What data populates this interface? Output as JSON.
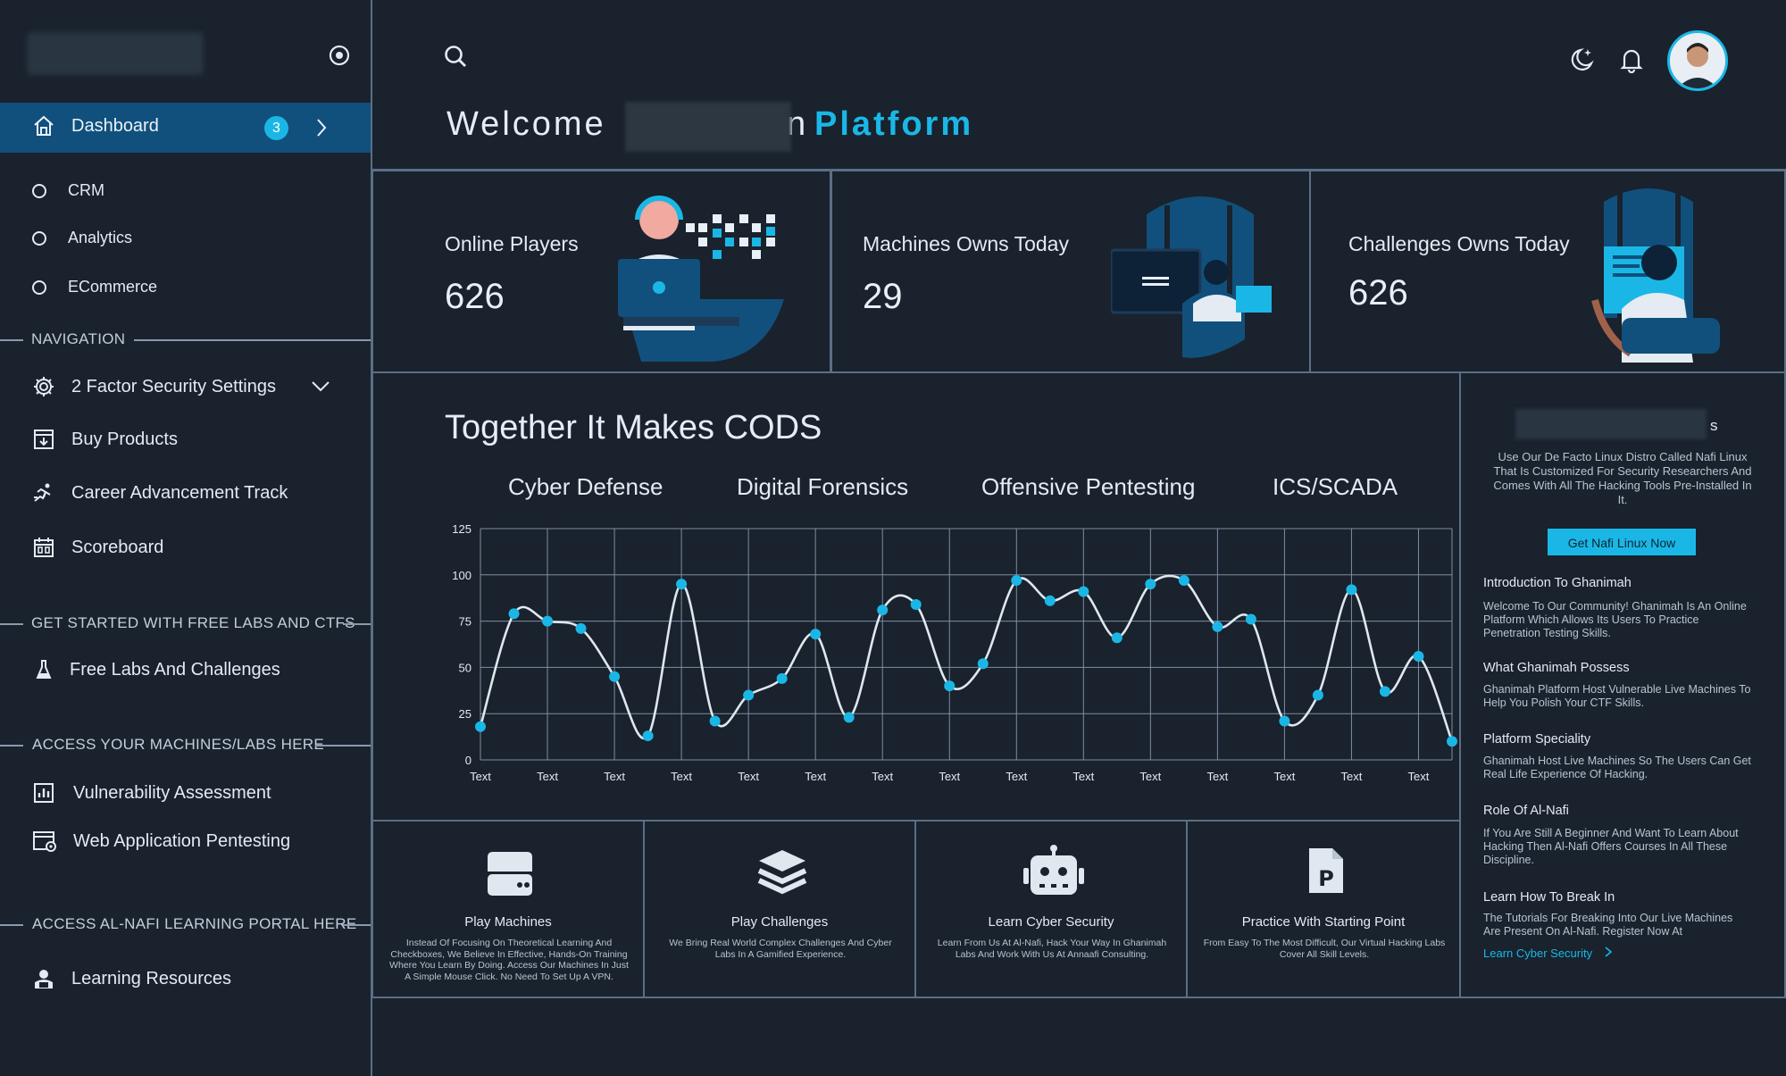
{
  "sidebar": {
    "nav_active": {
      "label": "Dashboard",
      "badge": "3"
    },
    "subitems": [
      {
        "label": "CRM"
      },
      {
        "label": "Analytics"
      },
      {
        "label": "ECommerce"
      }
    ],
    "sections": {
      "navigation": "NAVIGATION",
      "free_labs": "GET STARTED WITH FREE LABS AND CTFS",
      "machines": "ACCESS YOUR MACHINES/LABS HERE",
      "learning": "ACCESS AL-NAFI LEARNING PORTAL HERE"
    },
    "items": {
      "two_factor": "2 Factor Security Settings",
      "buy_products": "Buy Products",
      "career_track": "Career Advancement Track",
      "scoreboard": "Scoreboard",
      "free_labs": "Free Labs And Challenges",
      "vuln_assessment": "Vulnerability Assessment",
      "web_pentesting": "Web Application Pentesting",
      "learning_resources": "Learning Resources"
    }
  },
  "header": {
    "welcome_prefix": "Welcome",
    "welcome_suffix": "n",
    "platform": "Platform"
  },
  "stats": [
    {
      "title": "Online Players",
      "value": "626"
    },
    {
      "title": "Machines Owns Today",
      "value": "29"
    },
    {
      "title": "Challenges Owns Today",
      "value": "626"
    }
  ],
  "chart_section": {
    "title": "Together It Makes CODS",
    "tabs": [
      "Cyber Defense",
      "Digital Forensics",
      "Offensive Pentesting",
      "ICS/SCADA"
    ]
  },
  "chart_data": {
    "type": "line",
    "title": "",
    "xlabel": "",
    "ylabel": "",
    "ylim": [
      0,
      125
    ],
    "yticks": [
      0,
      25,
      50,
      75,
      100,
      125
    ],
    "xtick_labels": [
      "Text",
      "Text",
      "Text",
      "Text",
      "Text",
      "Text",
      "Text",
      "Text",
      "Text",
      "Text",
      "Text",
      "Text",
      "Text",
      "Text",
      "Text"
    ],
    "grid": true,
    "series": [
      {
        "color": "#1ab7e6",
        "x": [
          0,
          0.5,
          1,
          1.5,
          2,
          2.5,
          3,
          3.5,
          4,
          4.5,
          5,
          5.5,
          6,
          6.5,
          7,
          7.5,
          8,
          8.5,
          9,
          9.5,
          10,
          10.5,
          11,
          11.5,
          12,
          12.5,
          13,
          13.5,
          14,
          14.5
        ],
        "y": [
          18,
          79,
          75,
          71,
          45,
          13,
          95,
          21,
          35,
          44,
          68,
          23,
          81,
          84,
          40,
          52,
          97,
          86,
          91,
          66,
          95,
          97,
          72,
          76,
          21,
          35,
          92,
          37,
          56,
          10
        ]
      }
    ]
  },
  "features": [
    {
      "title": "Play Machines",
      "desc": "Instead Of Focusing On Theoretical Learning And Checkboxes, We Believe In Effective, Hands-On Training Where You Learn By Doing. Access Our Machines In Just A Simple Mouse Click. No Need To Set Up A VPN."
    },
    {
      "title": "Play Challenges",
      "desc": "We Bring Real World Complex Challenges And Cyber Labs In A Gamified Experience."
    },
    {
      "title": "Learn Cyber Security",
      "desc": "Learn From Us At Al-Nafi, Hack Your Way In Ghanimah Labs And Work With Us At Annaafi Consulting."
    },
    {
      "title": "Practice With Starting Point",
      "desc": "From Easy To The Most Difficult, Our Virtual Hacking Labs Cover All Skill Levels."
    }
  ],
  "right_panel": {
    "title_suffix": "s",
    "intro": "Use Our De Facto Linux Distro Called Nafi Linux That Is Customized For Security Researchers And Comes With All The Hacking Tools Pre-Installed In It.",
    "button": "Get Nafi Linux Now",
    "blocks": [
      {
        "heading": "Introduction To Ghanimah",
        "text": "Welcome To Our Community! Ghanimah Is An Online Platform Which Allows Its Users To Practice Penetration Testing Skills."
      },
      {
        "heading": "What Ghanimah Possess",
        "text": "Ghanimah Platform Host Vulnerable Live Machines To Help You Polish Your CTF Skills."
      },
      {
        "heading": "Platform Speciality",
        "text": "Ghanimah Host Live Machines So The Users Can Get Real Life Experience Of Hacking."
      },
      {
        "heading": "Role Of Al-Nafi",
        "text": "If You Are Still A Beginner And Want To Learn About Hacking Then Al-Nafi Offers Courses In All These Discipline."
      },
      {
        "heading": "Learn How To Break In",
        "text": "The Tutorials For Breaking Into Our Live Machines Are Present On Al-Nafi. Register Now At"
      }
    ],
    "link": "Learn Cyber Security"
  }
}
